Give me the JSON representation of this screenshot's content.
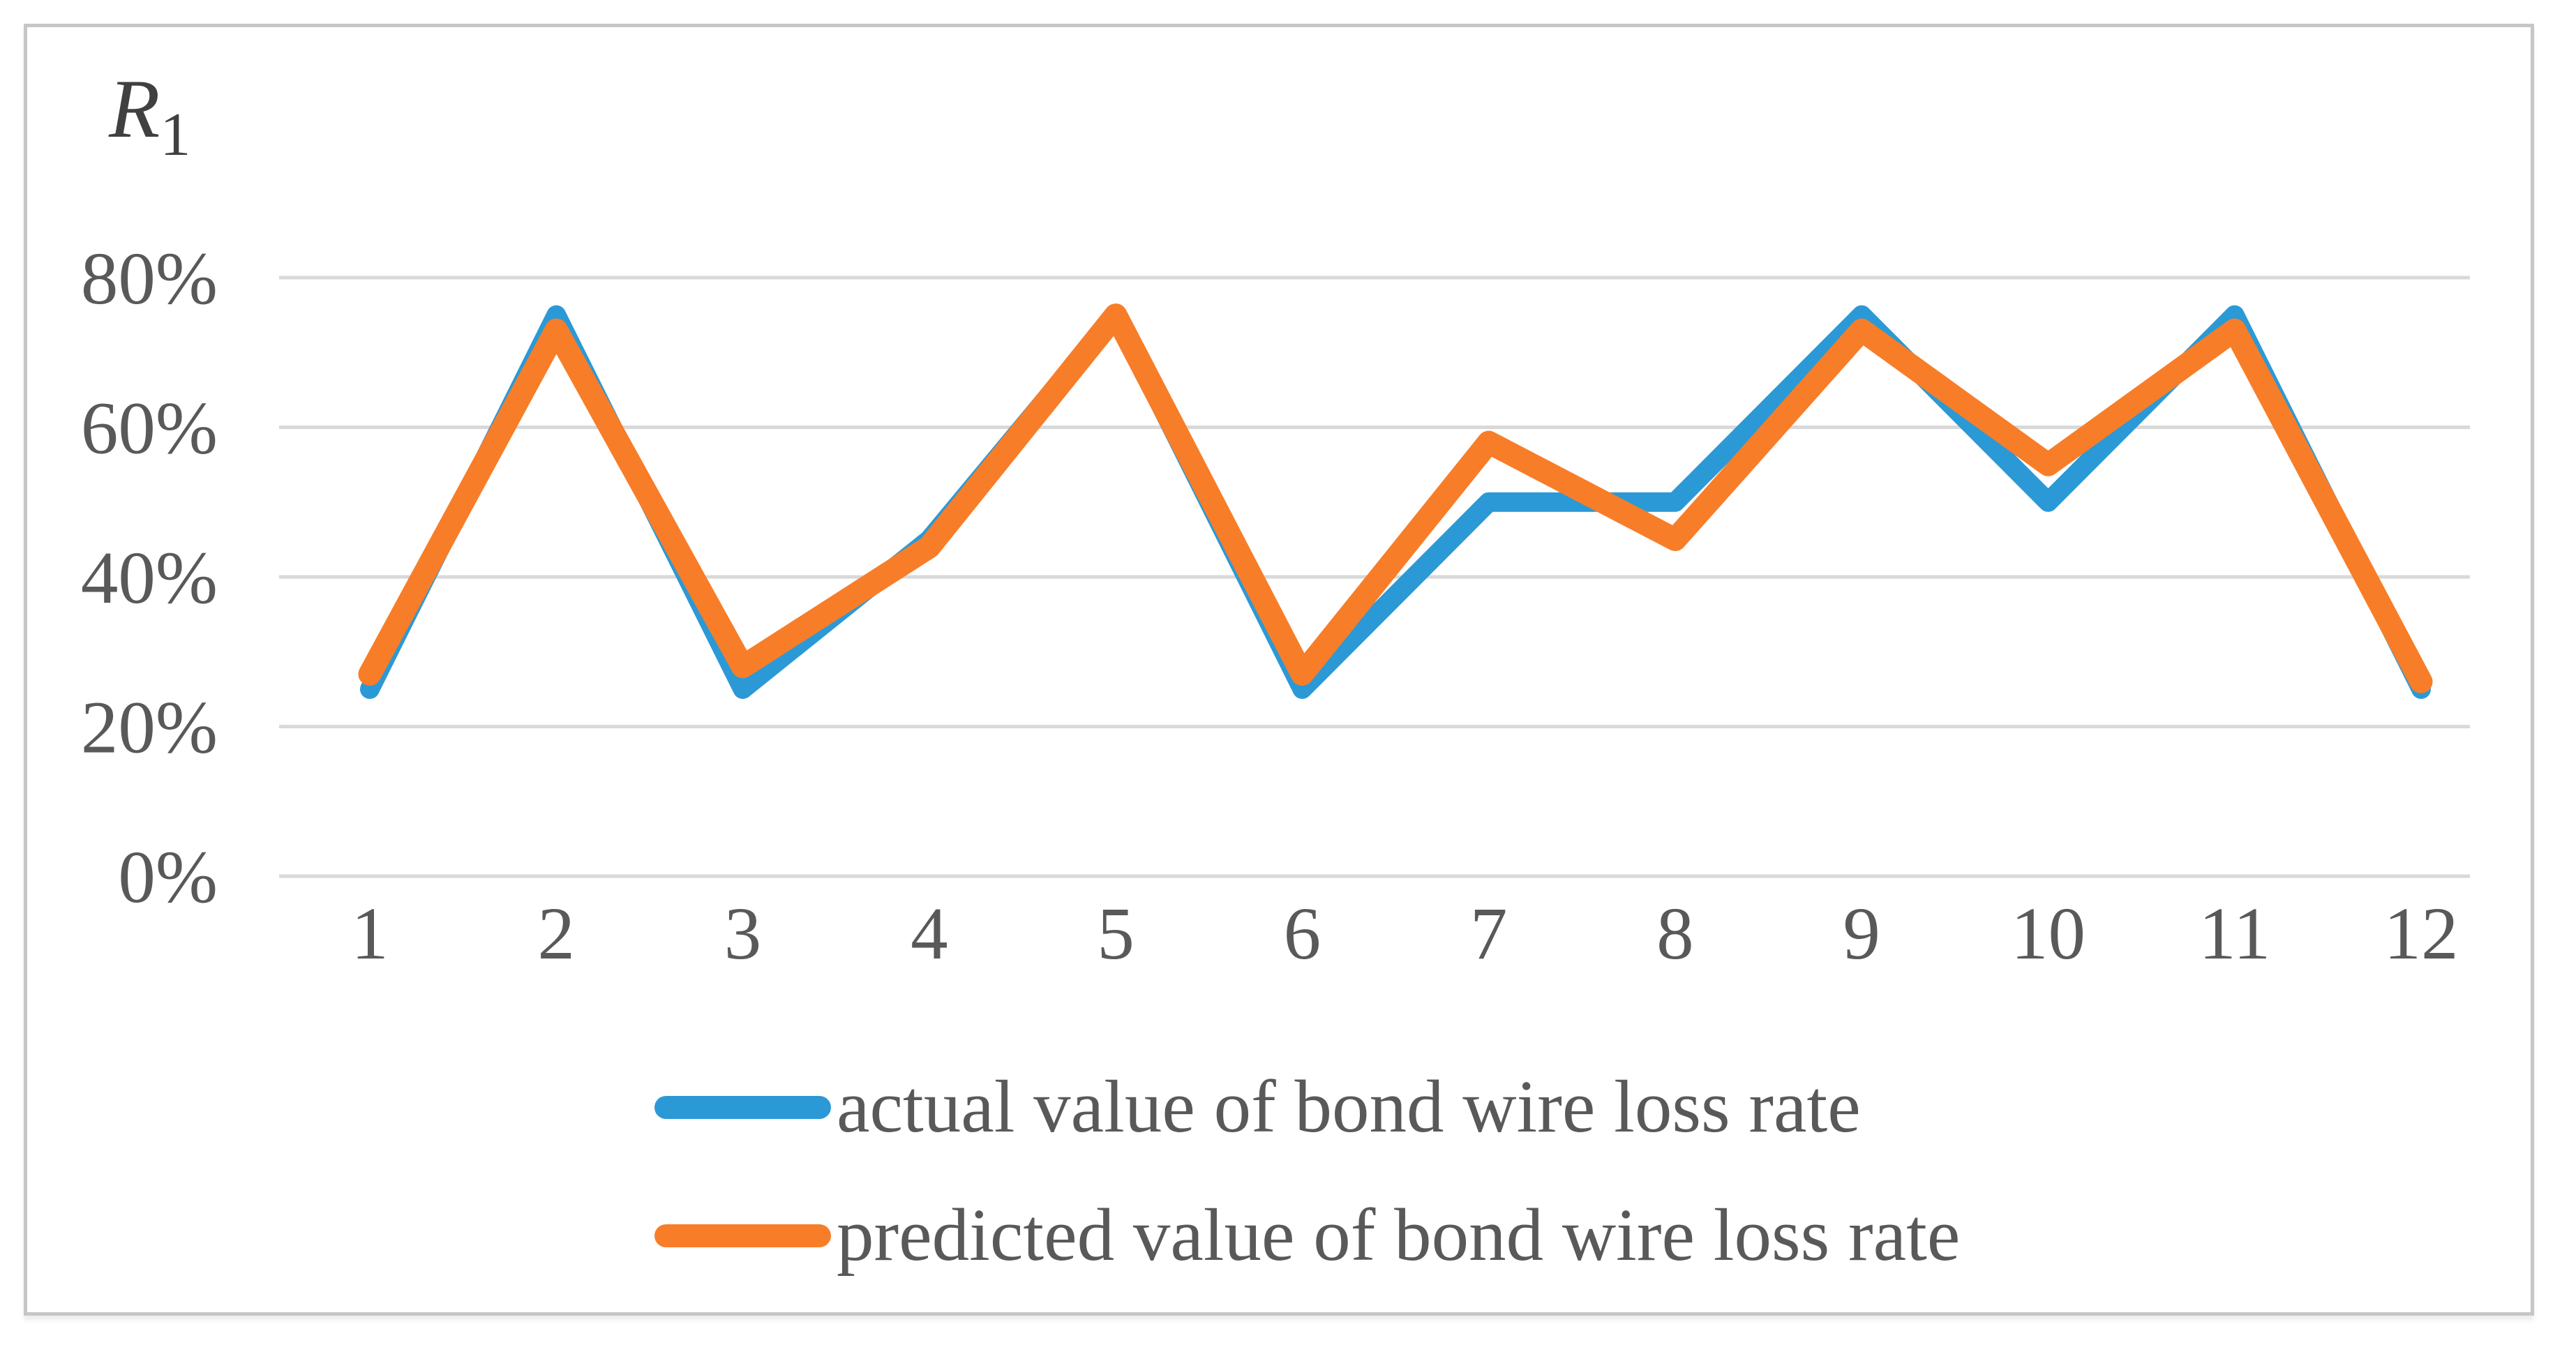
{
  "figure": {
    "y_axis_title_main": "R",
    "y_axis_title_sub": "1",
    "background": "#ffffff",
    "border_color": "#c6c6c6",
    "text_color": "#595959",
    "gridline_color": "#d9d9d9"
  },
  "legend": {
    "items": [
      {
        "label": "actual value of bond wire loss rate",
        "color": "#2b99d6"
      },
      {
        "label": "predicted value of bond wire loss rate",
        "color": "#f87d28"
      }
    ]
  },
  "chart_data": {
    "type": "line",
    "title": "R1",
    "ylabel": "R1",
    "xlabel": "",
    "categories": [
      1,
      2,
      3,
      4,
      5,
      6,
      7,
      8,
      9,
      10,
      11,
      12
    ],
    "series": [
      {
        "name": "actual value of bond wire loss rate",
        "color": "#2b99d6",
        "values_pct": [
          25,
          75,
          25,
          45,
          75,
          25,
          50,
          50,
          75,
          50,
          75,
          25
        ]
      },
      {
        "name": "predicted value of bond wire loss rate",
        "color": "#f87d28",
        "values_pct": [
          27,
          73,
          28,
          44,
          75,
          27,
          58,
          45,
          73,
          55,
          73,
          26
        ]
      }
    ],
    "y_ticks_pct": [
      80,
      60,
      40,
      20,
      0
    ],
    "ylim_pct": [
      0,
      93
    ],
    "grid": true,
    "legend_position": "bottom"
  }
}
